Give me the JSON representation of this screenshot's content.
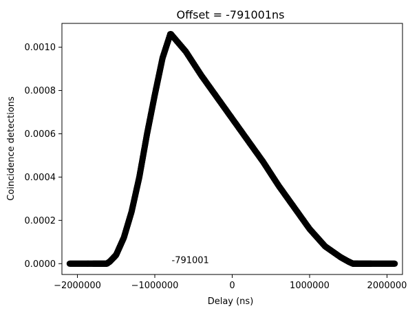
{
  "chart_data": {
    "type": "scatter",
    "title": "Offset = -791001ns",
    "xlabel": "Delay (ns)",
    "ylabel": "Coincidence detections",
    "xlim": [
      -2200000,
      2200000
    ],
    "ylim": [
      -5e-05,
      0.00111
    ],
    "xticks": [
      -2000000,
      -1000000,
      0,
      1000000,
      2000000
    ],
    "xtick_labels": [
      "−2000000",
      "−1000000",
      "0",
      "1000000",
      "2000000"
    ],
    "yticks": [
      0.0,
      0.0002,
      0.0004,
      0.0006,
      0.0008,
      0.001
    ],
    "ytick_labels": [
      "0.0000",
      "0.0002",
      "0.0004",
      "0.0006",
      "0.0008",
      "0.0010"
    ],
    "grid": false,
    "annotation": {
      "text": "-791001",
      "x": -800000,
      "y": 0.0
    },
    "series": [
      {
        "color": "#000000",
        "marker": "circle",
        "x": [
          -2100000,
          -1800000,
          -1620000,
          -1580000,
          -1500000,
          -1400000,
          -1300000,
          -1200000,
          -1100000,
          -1000000,
          -900000,
          -800000,
          -791001,
          -600000,
          -400000,
          -200000,
          0,
          200000,
          400000,
          600000,
          800000,
          1000000,
          1200000,
          1400000,
          1500000,
          1560000,
          1620000,
          1800000,
          2100000
        ],
        "y": [
          0.0,
          0.0,
          0.0,
          1e-05,
          4e-05,
          0.00012,
          0.00024,
          0.0004,
          0.0006,
          0.00078,
          0.00095,
          0.00106,
          0.00106,
          0.00098,
          0.00087,
          0.00077,
          0.00067,
          0.00057,
          0.00047,
          0.00036,
          0.00026,
          0.00016,
          8e-05,
          3e-05,
          1e-05,
          0.0,
          0.0,
          0.0,
          0.0
        ]
      }
    ]
  }
}
